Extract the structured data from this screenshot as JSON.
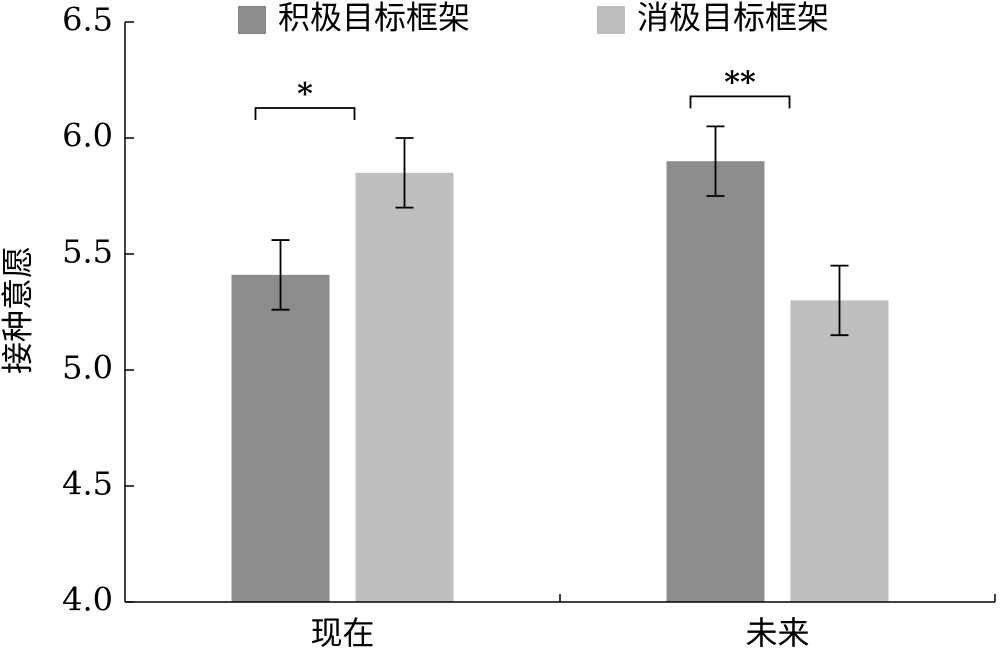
{
  "chart_data": {
    "type": "bar",
    "title": "",
    "xlabel": "",
    "ylabel": "接种意愿",
    "ylim": [
      4.0,
      6.5
    ],
    "yticks": [
      "4.0",
      "4.5",
      "5.0",
      "5.5",
      "6.0",
      "6.5"
    ],
    "categories": [
      "现在",
      "未来"
    ],
    "series": [
      {
        "name": "积极目标框架",
        "color": "#8c8c8c",
        "values": [
          5.41,
          5.9
        ],
        "error": [
          0.15,
          0.15
        ]
      },
      {
        "name": "消极目标框架",
        "color": "#bebebe",
        "values": [
          5.85,
          5.3
        ],
        "error": [
          0.15,
          0.15
        ]
      }
    ],
    "significance": [
      {
        "category_index": 0,
        "label": "*"
      },
      {
        "category_index": 1,
        "label": "**"
      }
    ],
    "grid": false,
    "legend": "top"
  }
}
